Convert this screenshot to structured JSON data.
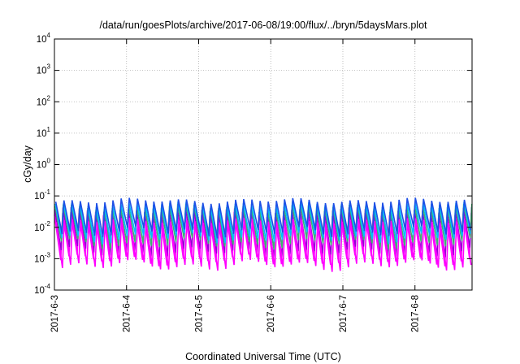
{
  "chart_data": {
    "type": "line",
    "title": "/data/run/goesPlots/archive/2017-06-08/19:00/flux/../bryn/5daysMars.plot",
    "xlabel": "Coordinated Universal Time (UTC)",
    "ylabel": "cGy/day",
    "yscale": "log",
    "ylim": [
      0.0001,
      10000
    ],
    "xlim": [
      "2017-06-03",
      "2017-06-08T19:00"
    ],
    "grid": true,
    "y_ticks": [
      {
        "base": "10",
        "exp": "4"
      },
      {
        "base": "10",
        "exp": "3"
      },
      {
        "base": "10",
        "exp": "2"
      },
      {
        "base": "10",
        "exp": "1"
      },
      {
        "base": "10",
        "exp": "0"
      },
      {
        "base": "10",
        "exp": "-1"
      },
      {
        "base": "10",
        "exp": "-2"
      },
      {
        "base": "10",
        "exp": "-3"
      },
      {
        "base": "10",
        "exp": "-4"
      }
    ],
    "x_ticks": [
      "2017-6-3",
      "2017-6-4",
      "2017-6-5",
      "2017-6-6",
      "2017-6-7",
      "2017-6-8"
    ],
    "cycle_hours": 2.72,
    "series": [
      {
        "color": "#ff00ff",
        "peak": 0.025,
        "trough": 0.0009
      },
      {
        "color": "#9400d3",
        "peak": 0.035,
        "trough": 0.0016
      },
      {
        "color": "#3cb371",
        "peak": 0.045,
        "trough": 0.003
      },
      {
        "color": "#00bfff",
        "peak": 0.055,
        "trough": 0.0045
      },
      {
        "color": "#1e50e6",
        "peak": 0.07,
        "trough": 0.007
      },
      {
        "color": "#ff00ff",
        "peak": 0.016,
        "trough": 0.0006
      }
    ]
  }
}
